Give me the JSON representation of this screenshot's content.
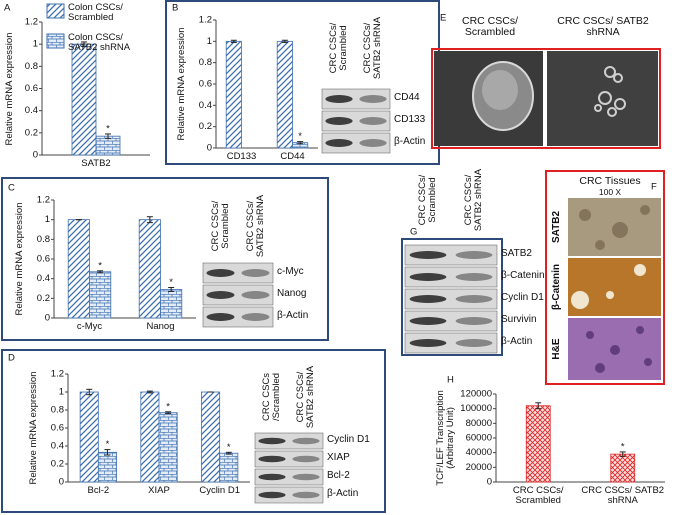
{
  "panel_letters": [
    "A",
    "B",
    "C",
    "D",
    "E",
    "F",
    "G",
    "H"
  ],
  "chart_data": [
    {
      "type": "bar",
      "y_label": "Relative mRNA expression",
      "categories": [
        "SATB2"
      ],
      "series": [
        {
          "name": "Colon CSCs/ Scrambled",
          "color": "#3d6fb0",
          "pattern": "diagonal",
          "values": [
            1.0
          ],
          "errors": [
            0.02
          ]
        },
        {
          "name": "Colon CSCs/ SATB2 shRNA",
          "color": "#3d6fb0",
          "pattern": "brick",
          "values": [
            0.17
          ],
          "errors": [
            0.02
          ],
          "significance": [
            "*"
          ]
        }
      ],
      "ylim": [
        0,
        1.2
      ],
      "yticks": [
        0,
        0.2,
        0.4,
        0.6,
        0.8,
        1,
        1.2
      ]
    },
    {
      "type": "bar",
      "y_label": "Relative mRNA expression",
      "categories": [
        "CD133",
        "CD44"
      ],
      "series": [
        {
          "color": "#3d6fb0",
          "pattern": "diagonal",
          "values": [
            1.0,
            1.0
          ],
          "errors": [
            0.01,
            0.01
          ]
        },
        {
          "color": "#3d6fb0",
          "pattern": "brick",
          "values": [
            null,
            0.05
          ],
          "errors": [
            null,
            0.01
          ],
          "significance": [
            null,
            "*"
          ]
        }
      ],
      "ylim": [
        0,
        1.2
      ],
      "yticks": [
        0,
        0.2,
        0.4,
        0.6,
        0.8,
        1,
        1.2
      ]
    },
    {
      "type": "bar",
      "y_label": "Relative mRNA expression",
      "categories": [
        "c-Myc",
        "Nanog"
      ],
      "series": [
        {
          "color": "#3d6fb0",
          "pattern": "diagonal",
          "values": [
            1.0,
            1.0
          ],
          "errors": [
            0.0,
            0.03
          ]
        },
        {
          "color": "#3d6fb0",
          "pattern": "brick",
          "values": [
            0.47,
            0.29
          ],
          "errors": [
            0.01,
            0.02
          ],
          "significance": [
            "*",
            "*"
          ]
        }
      ],
      "ylim": [
        0,
        1.2
      ],
      "yticks": [
        0,
        0.2,
        0.4,
        0.6,
        0.8,
        1,
        1.2
      ]
    },
    {
      "type": "bar",
      "y_label": "Relative mRNA expression",
      "categories": [
        "Bcl-2",
        "XIAP",
        "Cyclin D1"
      ],
      "series": [
        {
          "color": "#3d6fb0",
          "pattern": "diagonal",
          "values": [
            1.0,
            1.0,
            1.0
          ],
          "errors": [
            0.03,
            0.01,
            0.0
          ]
        },
        {
          "color": "#3d6fb0",
          "pattern": "brick",
          "values": [
            0.33,
            0.77,
            0.32
          ],
          "errors": [
            0.03,
            0.01,
            0.01
          ],
          "significance": [
            "*",
            "*",
            "*"
          ]
        }
      ],
      "ylim": [
        0,
        1.2
      ],
      "yticks": [
        0,
        0.2,
        0.4,
        0.6,
        0.8,
        1,
        1.2
      ]
    },
    {
      "type": "bar",
      "y_label": "TCF/LEF Transcription (Arbitrary Unit)",
      "categories": [
        "CRC CSCs/ Scrambled",
        "CRC CSCs/ SATB2 shRNA"
      ],
      "series": [
        {
          "color": "#e02828",
          "pattern": "crosshatch",
          "values": [
            104000,
            38000
          ],
          "errors": [
            4000,
            3000
          ],
          "significance": [
            null,
            "*"
          ]
        }
      ],
      "ylim": [
        0,
        120000
      ],
      "yticks": [
        0,
        20000,
        40000,
        60000,
        80000,
        100000,
        120000
      ]
    }
  ],
  "blots": [
    {
      "columns": [
        "CRC CSCs/ Scrambled",
        "CRC CSCs/ SATB2 shRNA"
      ],
      "rows": [
        "CD44",
        "CD133",
        "β-Actin"
      ]
    },
    {
      "columns": [
        "CRC CSCs/ Scrambled",
        "CRC CSCs/ SATB2 shRNA"
      ],
      "rows": [
        "c-Myc",
        "Nanog",
        "β-Actin"
      ]
    },
    {
      "columns": [
        "CRC CSCs /Scrambled",
        "CRC CSCs/ SATB2 shRNA"
      ],
      "rows": [
        "Cyclin D1",
        "XIAP",
        "Bcl-2",
        "β-Actin"
      ]
    },
    {
      "columns": [
        "CRC CSCs/ Scrambled",
        "CRC CSCs/ SATB2 shRNA"
      ],
      "rows": [
        "SATB2",
        "β-Catenin",
        "Cyclin D1",
        "Survivin",
        "β-Actin"
      ]
    }
  ],
  "spheres": {
    "columns": [
      "CRC CSCs/ Scrambled",
      "CRC CSCs/ SATB2 shRNA"
    ]
  },
  "tissues": {
    "title": "CRC Tissues",
    "magnification": "100 X",
    "rows": [
      "SATB2",
      "β-Catenin",
      "H&E"
    ]
  }
}
